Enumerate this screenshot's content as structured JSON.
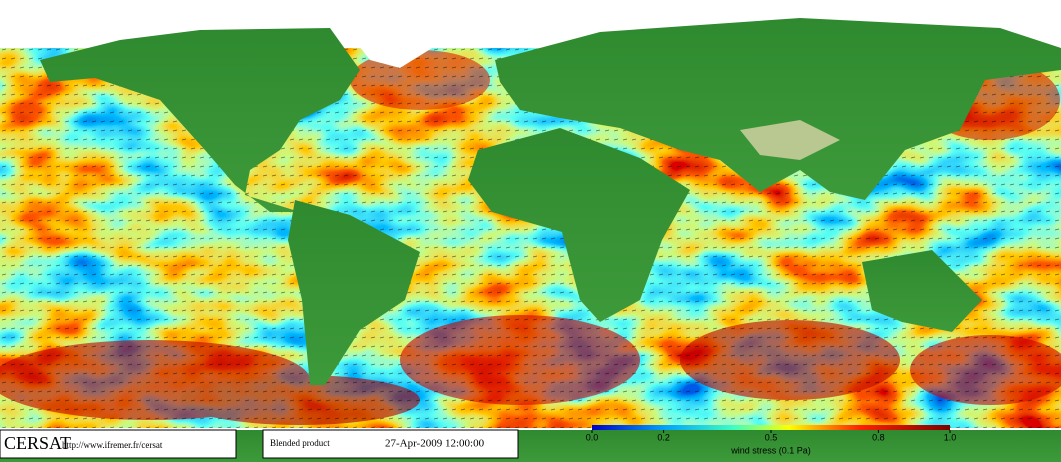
{
  "header": {
    "logo": "CERSAT",
    "url": "http://www.ifremer.fr/cersat"
  },
  "product": {
    "name": "Blended product",
    "date": "27-Apr-2009 12:00:00"
  },
  "colorbar": {
    "label": "wind stress (0.1 Pa)",
    "lim": [
      0,
      1
    ],
    "ticks": [
      {
        "value": 0,
        "label": "0.0"
      },
      0.2,
      0.5,
      0.8,
      {
        "value": 1,
        "label": "1.0"
      }
    ]
  }
}
